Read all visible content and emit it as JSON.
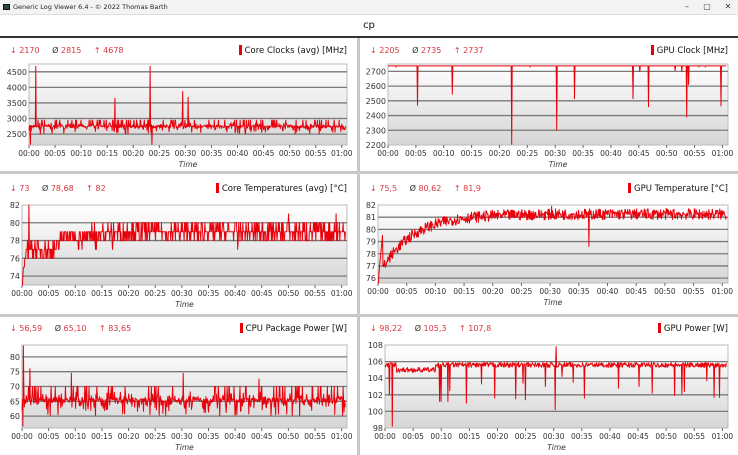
{
  "window": {
    "title": "Generic Log Viewer 6.4 - © 2022 Thomas Barth",
    "minimize": "–",
    "maximize": "▢",
    "close": "✕"
  },
  "header": {
    "title": "cp"
  },
  "colors": {
    "series": "#e8000b",
    "grid": "#7a7a7a",
    "stat": "#d9363e"
  },
  "chart_data": [
    {
      "type": "line",
      "title": "Core Clocks (avg) [MHz]",
      "xlabel": "Time",
      "stats": {
        "min": "2170",
        "avg": "2815",
        "max": "4678"
      },
      "xlim": [
        0,
        61
      ],
      "xticks": [
        "00:00",
        "00:05",
        "00:10",
        "00:15",
        "00:20",
        "00:25",
        "00:30",
        "00:35",
        "00:40",
        "00:45",
        "00:50",
        "00:55",
        "01:00"
      ],
      "ylim": [
        2150,
        4750
      ],
      "yticks": [
        2500,
        3000,
        3500,
        4000,
        4500
      ],
      "grid": true,
      "pattern": "noise",
      "typical_range": [
        2500,
        2950
      ],
      "spikes": [
        [
          1.3,
          4678
        ],
        [
          16.5,
          3650
        ],
        [
          23.2,
          4678
        ],
        [
          23.6,
          2170
        ],
        [
          29.5,
          3870
        ],
        [
          30.5,
          3680
        ],
        [
          0.3,
          2170
        ]
      ]
    },
    {
      "type": "line",
      "title": "GPU Clock [MHz]",
      "xlabel": "Time",
      "stats": {
        "min": "2205",
        "avg": "2735",
        "max": "2737"
      },
      "xlim": [
        0,
        61
      ],
      "xticks": [
        "00:00",
        "00:05",
        "00:10",
        "00:15",
        "00:20",
        "00:25",
        "00:30",
        "00:35",
        "00:40",
        "00:45",
        "00:50",
        "00:55",
        "01:00"
      ],
      "ylim": [
        2200,
        2750
      ],
      "yticks": [
        2200,
        2300,
        2400,
        2500,
        2600,
        2700
      ],
      "grid": true,
      "pattern": "flat",
      "typical_range": [
        2737,
        2737
      ],
      "spikes": [
        [
          1.5,
          2730
        ],
        [
          5.3,
          2470
        ],
        [
          11.5,
          2545
        ],
        [
          22.2,
          2205
        ],
        [
          25.5,
          2730
        ],
        [
          30.3,
          2300
        ],
        [
          33.5,
          2515
        ],
        [
          44,
          2515
        ],
        [
          45.2,
          2700
        ],
        [
          46.7,
          2460
        ],
        [
          51.5,
          2705
        ],
        [
          52.7,
          2700
        ],
        [
          53.6,
          2390
        ],
        [
          53.9,
          2610
        ],
        [
          55.8,
          2730
        ],
        [
          57,
          2730
        ],
        [
          59.7,
          2465
        ]
      ]
    },
    {
      "type": "line",
      "title": "Core Temperatures (avg) [°C]",
      "xlabel": "Time",
      "stats": {
        "min": "73",
        "avg": "78,68",
        "max": "82"
      },
      "xlim": [
        0,
        61
      ],
      "xticks": [
        "00:00",
        "00:05",
        "00:10",
        "00:15",
        "00:20",
        "00:25",
        "00:30",
        "00:35",
        "00:40",
        "00:45",
        "00:50",
        "00:55",
        "01:00"
      ],
      "ylim": [
        73,
        82
      ],
      "yticks": [
        74,
        76,
        78,
        80,
        82
      ],
      "grid": true,
      "pattern": "steps",
      "typical_range": [
        78,
        80
      ],
      "spikes": [
        [
          0.1,
          73
        ],
        [
          1.3,
          82
        ],
        [
          17,
          77
        ],
        [
          40.5,
          77
        ],
        [
          50,
          81
        ],
        [
          59,
          81
        ]
      ]
    },
    {
      "type": "line",
      "title": "GPU Temperature [°C]",
      "xlabel": "Time",
      "stats": {
        "min": "75,5",
        "avg": "80,62",
        "max": "81,9"
      },
      "xlim": [
        0,
        61
      ],
      "xticks": [
        "00:00",
        "00:05",
        "00:10",
        "00:15",
        "00:20",
        "00:25",
        "00:30",
        "00:35",
        "00:40",
        "00:45",
        "00:50",
        "00:55",
        "01:00"
      ],
      "ylim": [
        75.6,
        82
      ],
      "yticks": [
        76,
        77,
        78,
        79,
        80,
        81,
        82
      ],
      "grid": true,
      "pattern": "warmup",
      "typical_range": [
        80.6,
        81.3
      ],
      "spikes": [
        [
          0.1,
          75.5
        ],
        [
          30.3,
          81.9
        ],
        [
          36.8,
          78.6
        ]
      ]
    },
    {
      "type": "line",
      "title": "CPU Package Power [W]",
      "xlabel": "Time",
      "stats": {
        "min": "56,59",
        "avg": "65,10",
        "max": "83,65"
      },
      "xlim": [
        0,
        61
      ],
      "xticks": [
        "00:00",
        "00:05",
        "00:10",
        "00:15",
        "00:20",
        "00:25",
        "00:30",
        "00:35",
        "00:40",
        "00:45",
        "00:50",
        "00:55",
        "01:00"
      ],
      "ylim": [
        56,
        84
      ],
      "yticks": [
        60,
        65,
        70,
        75,
        80
      ],
      "grid": true,
      "pattern": "noise",
      "typical_range": [
        60,
        70
      ],
      "spikes": [
        [
          0.15,
          56.59
        ],
        [
          0.3,
          83.65
        ],
        [
          1.5,
          76
        ],
        [
          9.3,
          74.5
        ],
        [
          30.3,
          74.5
        ],
        [
          44.5,
          72.5
        ]
      ]
    },
    {
      "type": "line",
      "title": "GPU Power [W]",
      "xlabel": "Time",
      "stats": {
        "min": "98,22",
        "avg": "105,3",
        "max": "107,8"
      },
      "xlim": [
        0,
        61
      ],
      "xticks": [
        "00:00",
        "00:05",
        "00:10",
        "00:15",
        "00:20",
        "00:25",
        "00:30",
        "00:35",
        "00:40",
        "00:45",
        "00:50",
        "00:55",
        "01:00"
      ],
      "ylim": [
        98,
        108
      ],
      "yticks": [
        98,
        100,
        102,
        104,
        106,
        108
      ],
      "grid": true,
      "pattern": "flat-noise",
      "typical_range": [
        105,
        105.8
      ],
      "spikes": [
        [
          0.8,
          102
        ],
        [
          1.3,
          98.22
        ],
        [
          9.7,
          101.2
        ],
        [
          10,
          101.2
        ],
        [
          11.2,
          101.2
        ],
        [
          11.5,
          102.5
        ],
        [
          14.5,
          101
        ],
        [
          17.2,
          103.3
        ],
        [
          19.5,
          101.6
        ],
        [
          23.2,
          101.5
        ],
        [
          24.5,
          103.4
        ],
        [
          25,
          101.4
        ],
        [
          28.5,
          103
        ],
        [
          30.3,
          100.2
        ],
        [
          30.4,
          107.8
        ],
        [
          31.5,
          104.2
        ],
        [
          33.5,
          103.5
        ],
        [
          35.5,
          101.6
        ],
        [
          41.5,
          102.8
        ],
        [
          45.2,
          103
        ],
        [
          47.5,
          102.2
        ],
        [
          51.5,
          101.9
        ],
        [
          52.8,
          102.1
        ],
        [
          53.2,
          102.4
        ],
        [
          57.2,
          103.7
        ],
        [
          58.5,
          101.7
        ],
        [
          59.5,
          101.7
        ]
      ]
    }
  ]
}
